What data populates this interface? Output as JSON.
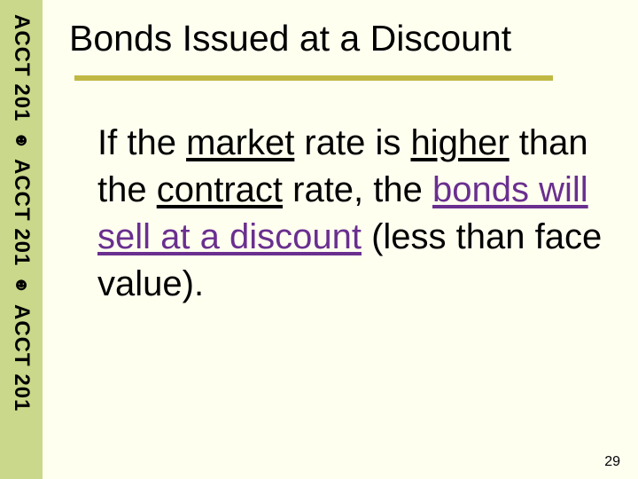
{
  "colors": {
    "slide_bg": "#fffff0",
    "sidebar_bg": "#c9d88a",
    "sidebar_text": "#000000",
    "title_color": "#000000",
    "rule_color": "#c0b844",
    "body_color": "#000000",
    "purple": "#6a2f8f",
    "pagenum_color": "#000000"
  },
  "fonts": {
    "title_size_pt": 41,
    "body_size_pt": 40,
    "sidebar_size_pt": 24,
    "pagenum_size_pt": 16
  },
  "sidebar": {
    "label": "ACCT 201",
    "icon_glyph": "☻",
    "repeats": 3
  },
  "title": "Bonds Issued at a Discount",
  "body": {
    "t1": "If the ",
    "market": "market",
    "t2": " rate is ",
    "higher": "higher",
    "t3": " than the ",
    "contract": "contract",
    "t4": " rate, the ",
    "bonds_phrase": "bonds will sell at a discount",
    "t5": " (less than face value)."
  },
  "page_number": "29"
}
